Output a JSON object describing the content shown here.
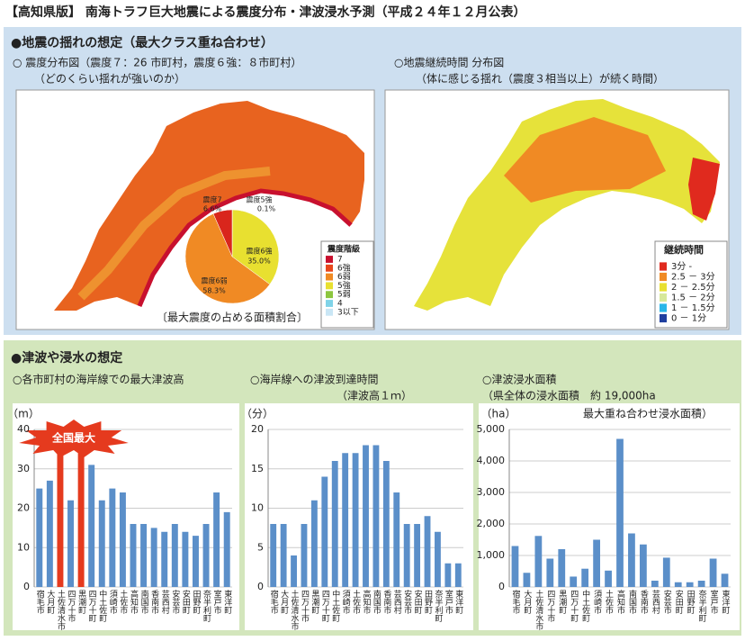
{
  "header": {
    "title": "【高知県版】 南海トラフ巨大地震による震度分布・津波浸水予測（平成２４年１２月公表）"
  },
  "quake": {
    "heading": "●地震の揺れの想定（最大クラス重ね合わせ）",
    "left_title": "○ 震度分布図（震度７：26 市町村，震度６強：８市町村）",
    "left_subtitle": "（どのくらい揺れが強いのか）",
    "right_title": "○地震継続時間 分布図",
    "right_subtitle": "（体に感じる揺れ（震度３相当以上）が続く時間）",
    "pie_caption": "〔最大震度の占める面積割合〕",
    "intensity_legend": {
      "title": "震度階級",
      "items": [
        {
          "label": "7",
          "color": "#c8102e"
        },
        {
          "label": "6強",
          "color": "#e8471c"
        },
        {
          "label": "6弱",
          "color": "#f08a24"
        },
        {
          "label": "5強",
          "color": "#e8e030"
        },
        {
          "label": "5弱",
          "color": "#8cc63f"
        },
        {
          "label": "4",
          "color": "#7fd3e8"
        },
        {
          "label": "3以下",
          "color": "#c9e6f5"
        }
      ]
    },
    "duration_legend": {
      "title": "継続時間",
      "items": [
        {
          "label": "3分 -",
          "color": "#e02a1e"
        },
        {
          "label": "2.5 － 3分",
          "color": "#f08a24"
        },
        {
          "label": "2 － 2.5分",
          "color": "#e8e030"
        },
        {
          "label": "1.5 － 2分",
          "color": "#d7e89a"
        },
        {
          "label": "1 － 1.5分",
          "color": "#29b6e8"
        },
        {
          "label": "0 － 1分",
          "color": "#1f3f9f"
        }
      ]
    }
  },
  "tsunami": {
    "heading": "●津波や浸水の想定"
  },
  "chart_data": [
    {
      "type": "pie",
      "categories": [
        "震度5強",
        "震度6強",
        "震度6弱",
        "震度7"
      ],
      "values": [
        0.1,
        35.0,
        58.3,
        6.6
      ],
      "value_labels": [
        "0.1%",
        "35.0%",
        "58.3%",
        "6.6%"
      ],
      "colors": [
        "#8cc63f",
        "#e8e030",
        "#f08a24",
        "#d9261c"
      ]
    },
    {
      "type": "bar",
      "title": "○各市町村の海岸線での最大津波高",
      "ylabel": "（m）",
      "annotation": "全国最大",
      "categories": [
        "宿毛市",
        "大月町",
        "土佐清水市",
        "四万十市",
        "黒潮町",
        "四万十町",
        "中土佐町",
        "須崎市",
        "土佐市",
        "高知市",
        "南国市",
        "香南市",
        "芸西村",
        "安芸市",
        "安田町",
        "田野町",
        "奈半利町",
        "室戸市",
        "東洋町"
      ],
      "values": [
        25,
        27,
        34,
        22,
        34,
        31,
        22,
        25,
        24,
        16,
        16,
        15,
        14,
        16,
        14,
        13,
        16,
        24,
        19
      ],
      "colors": [
        "#5b8fc9",
        "#5b8fc9",
        "#e53a1e",
        "#5b8fc9",
        "#e53a1e",
        "#5b8fc9",
        "#5b8fc9",
        "#5b8fc9",
        "#5b8fc9",
        "#5b8fc9",
        "#5b8fc9",
        "#5b8fc9",
        "#5b8fc9",
        "#5b8fc9",
        "#5b8fc9",
        "#5b8fc9",
        "#5b8fc9",
        "#5b8fc9",
        "#5b8fc9"
      ],
      "ylim": [
        0,
        40
      ],
      "yticks": [
        0,
        10,
        20,
        30,
        40
      ],
      "grid": true
    },
    {
      "type": "bar",
      "title": "○海岸線への津波到達時間",
      "subtitle": "（津波高１ｍ）",
      "ylabel": "（分）",
      "categories": [
        "宿毛市",
        "大月町",
        "土佐清水市",
        "四万十市",
        "黒潮町",
        "四万十町",
        "中土佐町",
        "須崎市",
        "土佐市",
        "高知市",
        "南国市",
        "香南市",
        "芸西村",
        "安芸市",
        "安田町",
        "田野町",
        "奈半利町",
        "室戸市",
        "東洋町"
      ],
      "values": [
        8,
        8,
        4,
        8,
        11,
        14,
        16,
        17,
        17,
        18,
        18,
        16,
        12,
        8,
        8,
        9,
        7,
        3,
        3
      ],
      "color": "#5b8fc9",
      "ylim": [
        0,
        20
      ],
      "yticks": [
        0,
        5,
        10,
        15,
        20
      ],
      "grid": true
    },
    {
      "type": "bar",
      "title": "○津波浸水面積",
      "subtitle": "（県全体の浸水面積　約 19,000ha",
      "annotation": "最大重ね合わせ浸水面積）",
      "ylabel": "（ha）",
      "categories": [
        "宿毛市",
        "大月町",
        "土佐清水市",
        "四万十市",
        "黒潮町",
        "四万十町",
        "中土佐町",
        "須崎市",
        "土佐市",
        "高知市",
        "南国市",
        "香南市",
        "芸西村",
        "安芸市",
        "安田町",
        "田野町",
        "奈半利町",
        "室戸市",
        "東洋町"
      ],
      "values": [
        1300,
        450,
        1620,
        900,
        1200,
        330,
        580,
        1500,
        520,
        4700,
        1700,
        1350,
        200,
        930,
        150,
        150,
        200,
        900,
        420
      ],
      "color": "#5b8fc9",
      "ylim": [
        0,
        5000
      ],
      "yticks": [
        0,
        {
          "value": 1000,
          "label": "1,000"
        },
        {
          "value": 2000,
          "label": "2,000"
        },
        {
          "value": 3000,
          "label": "3,000"
        },
        {
          "value": 4000,
          "label": "4,000"
        },
        {
          "value": 5000,
          "label": "5,000"
        }
      ],
      "grid": true
    }
  ]
}
